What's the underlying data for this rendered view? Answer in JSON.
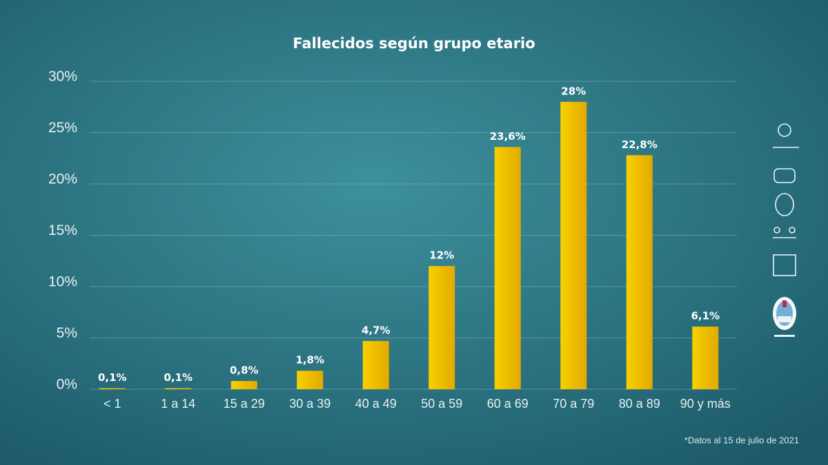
{
  "chart_data": {
    "type": "bar",
    "title": "Fallecidos según grupo etario",
    "footnote": "*Datos al 15 de julio de 2021",
    "categories": [
      "< 1",
      "1 a 14",
      "15 a 29",
      "30 a 39",
      "40 a 49",
      "50 a 59",
      "60 a 69",
      "70 a 79",
      "80 a 89",
      "90 y más"
    ],
    "values": [
      0.1,
      0.1,
      0.8,
      1.8,
      4.7,
      12,
      23.6,
      28,
      22.8,
      6.1
    ],
    "value_labels": [
      "0,1%",
      "0,1%",
      "0,8%",
      "1,8%",
      "4,7%",
      "12%",
      "23,6%",
      "28%",
      "22,8%",
      "6,1%"
    ],
    "color": "#f2c200",
    "ylim": [
      0,
      30
    ],
    "yticks": [
      {
        "value": 0,
        "label": "0%"
      },
      {
        "value": 5,
        "label": "5%"
      },
      {
        "value": 10,
        "label": "10%"
      },
      {
        "value": 15,
        "label": "15%"
      },
      {
        "value": 20,
        "label": "20%"
      },
      {
        "value": 25,
        "label": "25%"
      },
      {
        "value": 30,
        "label": "30%"
      }
    ],
    "grid": true
  }
}
